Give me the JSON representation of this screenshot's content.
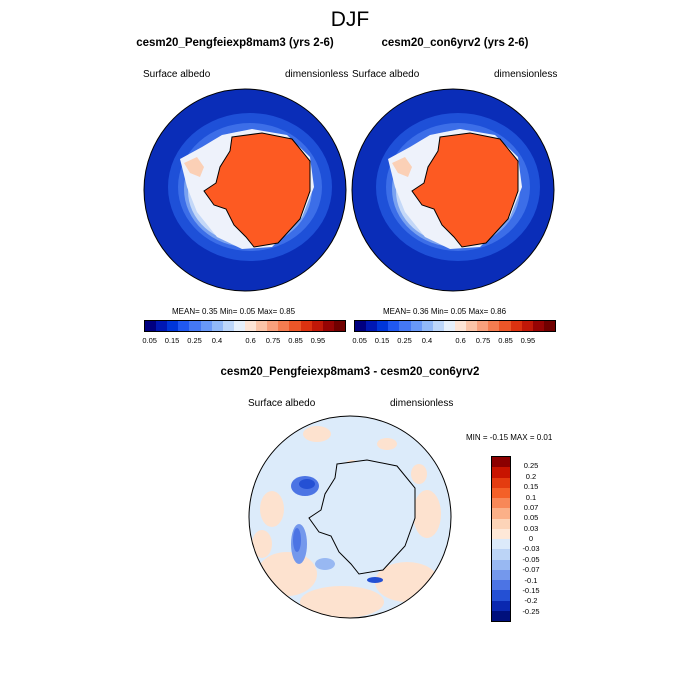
{
  "main_title": "DJF",
  "panels": [
    {
      "title": "cesm20_Pengfeiexp8mam3 (yrs 2-6)",
      "variable": "Surface albedo",
      "units": "dimensionless",
      "stats": {
        "mean_label": "MEAN=",
        "mean": "0.35",
        "min_label": "Min=",
        "min": "0.05",
        "max_label": "Max=",
        "max": "0.85"
      }
    },
    {
      "title": "cesm20_con6yrv2 (yrs 2-6)",
      "variable": "Surface albedo",
      "units": "dimensionless",
      "stats": {
        "mean_label": "MEAN=",
        "mean": "0.36",
        "min_label": "Min=",
        "min": "0.05",
        "max_label": "Max=",
        "max": "0.86"
      }
    }
  ],
  "colorbar_abs": {
    "colors": [
      "#000080",
      "#0018b4",
      "#0036d8",
      "#2058f0",
      "#4478f4",
      "#6898f8",
      "#90b8f8",
      "#bcd6fa",
      "#e6f0fc",
      "#fde4d6",
      "#fbc4a8",
      "#f8a07c",
      "#f47c50",
      "#ec5628",
      "#dc3210",
      "#c01808",
      "#960404",
      "#700000"
    ],
    "labels": [
      "0.05",
      "0.15",
      "0.25",
      "0.4",
      "0.6",
      "0.75",
      "0.85",
      "0.95"
    ]
  },
  "diff": {
    "title": "cesm20_Pengfeiexp8mam3 - cesm20_con6yrv2",
    "variable": "Surface albedo",
    "units": "dimensionless",
    "minmax": {
      "min_label": "MIN =",
      "min": "-0.15",
      "max_label": "MAX =",
      "max": "0.01"
    },
    "colorbar": {
      "colors": [
        "#8c0000",
        "#c81400",
        "#e43c10",
        "#f46028",
        "#f88858",
        "#fbb088",
        "#fdd4b8",
        "#fee8d8",
        "#dceafa",
        "#bcd4f6",
        "#98b8f2",
        "#7498ec",
        "#4c74e4",
        "#2450d4",
        "#0a28b0",
        "#00107c"
      ],
      "labels": [
        "0.25",
        "0.2",
        "0.15",
        "0.1",
        "0.07",
        "0.05",
        "0.03",
        "0",
        "-0.03",
        "-0.05",
        "-0.07",
        "-0.1",
        "-0.15",
        "-0.2",
        "-0.25"
      ]
    }
  }
}
